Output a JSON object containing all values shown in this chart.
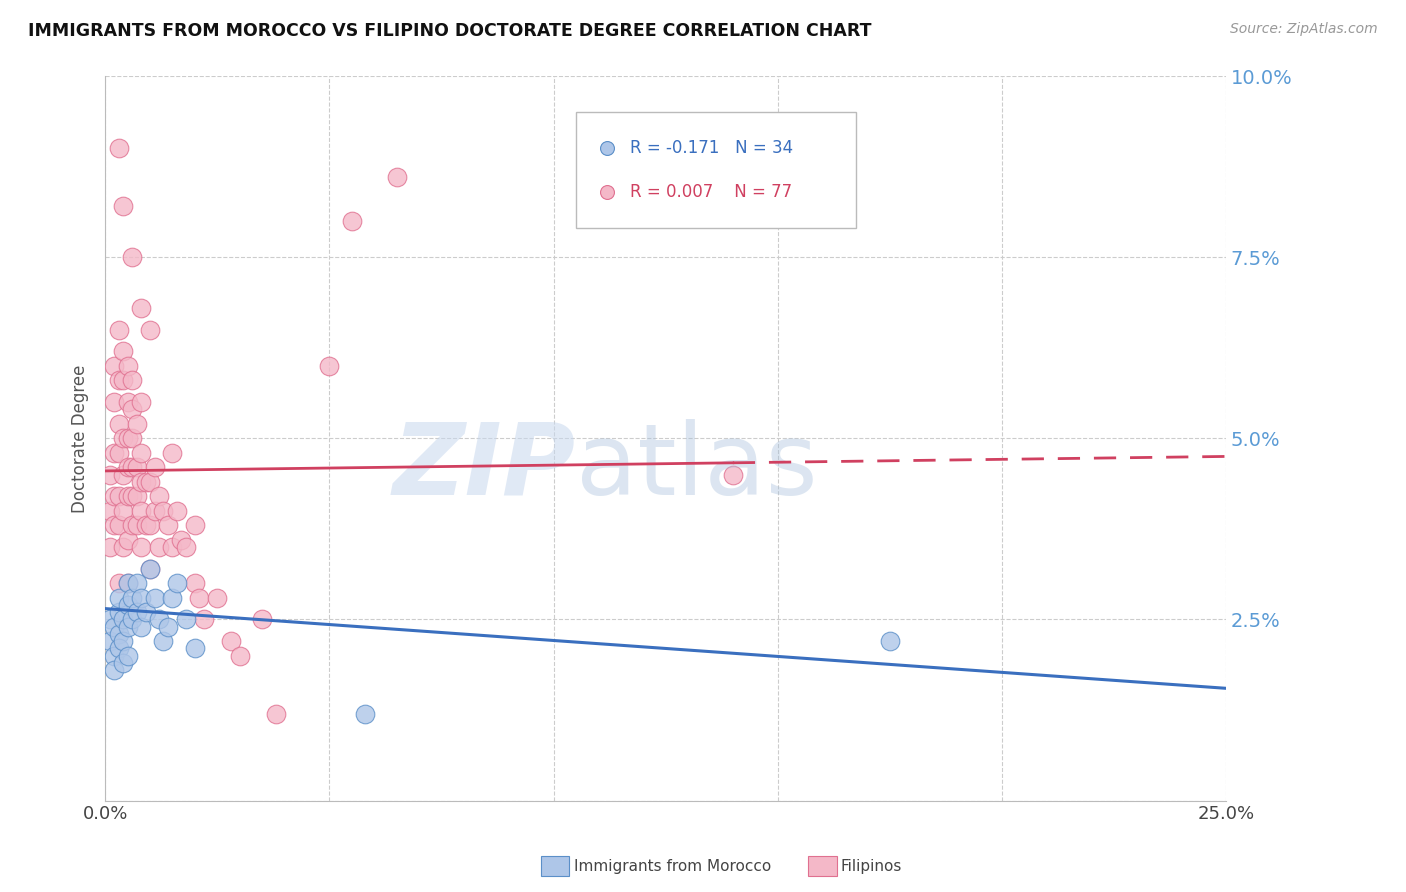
{
  "title": "IMMIGRANTS FROM MOROCCO VS FILIPINO DOCTORATE DEGREE CORRELATION CHART",
  "source": "Source: ZipAtlas.com",
  "ylabel": "Doctorate Degree",
  "xlim": [
    0.0,
    0.25
  ],
  "ylim": [
    0.0,
    0.1
  ],
  "blue_R": -0.171,
  "blue_N": 34,
  "pink_R": 0.007,
  "pink_N": 77,
  "blue_color": "#aec6e8",
  "pink_color": "#f4b8c8",
  "blue_edge": "#5b8fc8",
  "pink_edge": "#e07090",
  "trend_blue": "#3a6fbf",
  "trend_pink": "#d04060",
  "blue_scatter_x": [
    0.001,
    0.001,
    0.002,
    0.002,
    0.002,
    0.003,
    0.003,
    0.003,
    0.003,
    0.004,
    0.004,
    0.004,
    0.005,
    0.005,
    0.005,
    0.005,
    0.006,
    0.006,
    0.007,
    0.007,
    0.008,
    0.008,
    0.009,
    0.01,
    0.011,
    0.012,
    0.013,
    0.014,
    0.015,
    0.016,
    0.018,
    0.02,
    0.175,
    0.058
  ],
  "blue_scatter_y": [
    0.022,
    0.025,
    0.02,
    0.024,
    0.018,
    0.026,
    0.023,
    0.021,
    0.028,
    0.025,
    0.022,
    0.019,
    0.03,
    0.027,
    0.024,
    0.02,
    0.028,
    0.025,
    0.03,
    0.026,
    0.028,
    0.024,
    0.026,
    0.032,
    0.028,
    0.025,
    0.022,
    0.024,
    0.028,
    0.03,
    0.025,
    0.021,
    0.022,
    0.012
  ],
  "pink_scatter_x": [
    0.001,
    0.001,
    0.001,
    0.002,
    0.002,
    0.002,
    0.002,
    0.002,
    0.003,
    0.003,
    0.003,
    0.003,
    0.003,
    0.003,
    0.003,
    0.004,
    0.004,
    0.004,
    0.004,
    0.004,
    0.004,
    0.005,
    0.005,
    0.005,
    0.005,
    0.005,
    0.005,
    0.005,
    0.006,
    0.006,
    0.006,
    0.006,
    0.006,
    0.006,
    0.007,
    0.007,
    0.007,
    0.007,
    0.008,
    0.008,
    0.008,
    0.008,
    0.008,
    0.009,
    0.009,
    0.01,
    0.01,
    0.01,
    0.011,
    0.011,
    0.012,
    0.012,
    0.013,
    0.014,
    0.015,
    0.016,
    0.017,
    0.018,
    0.02,
    0.021,
    0.022,
    0.025,
    0.028,
    0.03,
    0.035,
    0.038,
    0.05,
    0.055,
    0.065,
    0.14,
    0.003,
    0.004,
    0.006,
    0.008,
    0.01,
    0.015,
    0.02
  ],
  "pink_scatter_y": [
    0.035,
    0.04,
    0.045,
    0.038,
    0.042,
    0.048,
    0.055,
    0.06,
    0.03,
    0.038,
    0.042,
    0.048,
    0.052,
    0.058,
    0.065,
    0.035,
    0.04,
    0.045,
    0.05,
    0.058,
    0.062,
    0.03,
    0.036,
    0.042,
    0.046,
    0.05,
    0.055,
    0.06,
    0.038,
    0.042,
    0.046,
    0.05,
    0.054,
    0.058,
    0.038,
    0.042,
    0.046,
    0.052,
    0.035,
    0.04,
    0.044,
    0.048,
    0.055,
    0.038,
    0.044,
    0.032,
    0.038,
    0.044,
    0.04,
    0.046,
    0.035,
    0.042,
    0.04,
    0.038,
    0.035,
    0.04,
    0.036,
    0.035,
    0.03,
    0.028,
    0.025,
    0.028,
    0.022,
    0.02,
    0.025,
    0.012,
    0.06,
    0.08,
    0.086,
    0.045,
    0.09,
    0.082,
    0.075,
    0.068,
    0.065,
    0.048,
    0.038
  ],
  "trend_blue_x0": 0.0,
  "trend_blue_x1": 0.25,
  "trend_blue_y0": 0.0265,
  "trend_blue_y1": 0.0155,
  "trend_pink_x0": 0.0,
  "trend_pink_x1": 0.25,
  "trend_pink_y0": 0.0455,
  "trend_pink_y1": 0.0475,
  "trend_pink_solid_end": 0.14
}
